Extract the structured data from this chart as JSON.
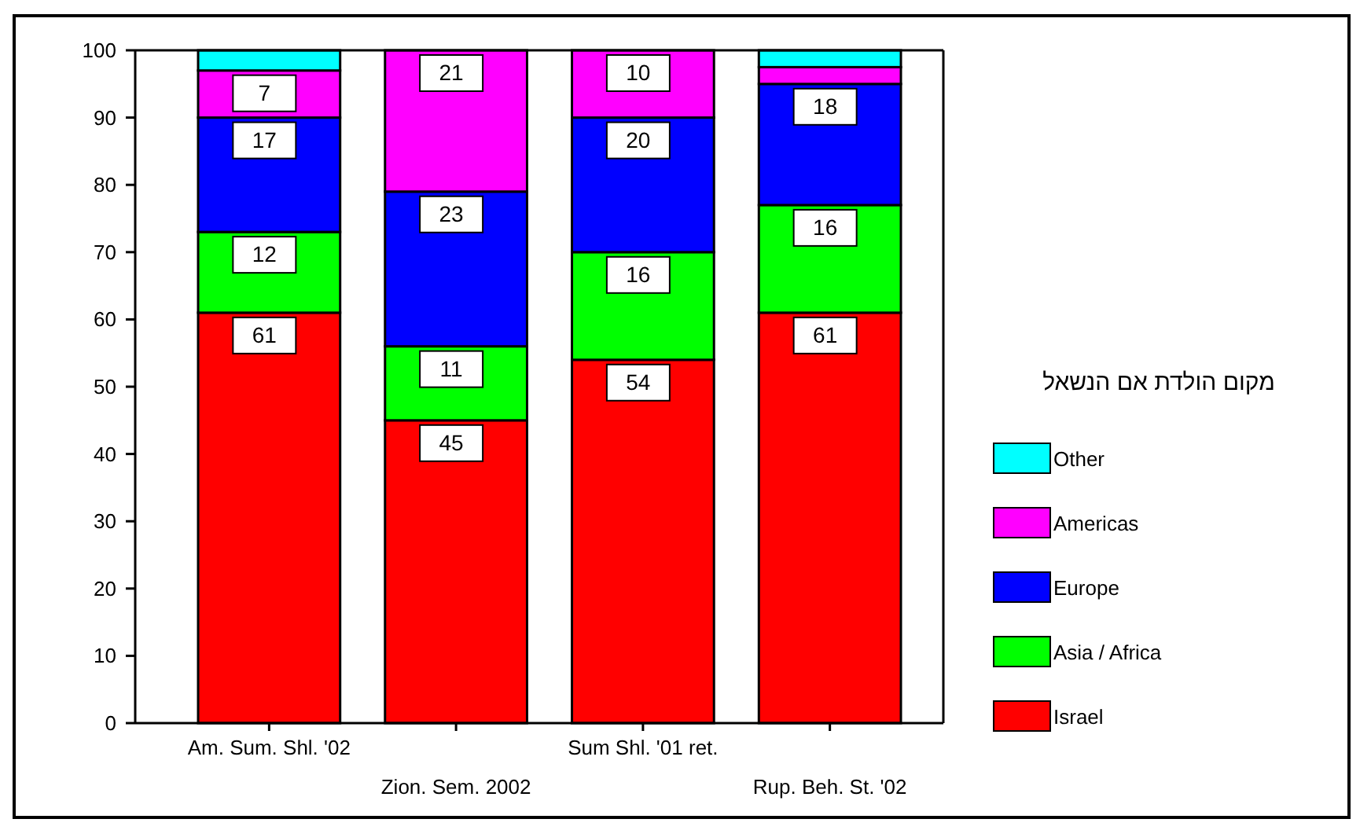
{
  "chart_data": {
    "type": "bar",
    "stacked": true,
    "categories": [
      "Am. Sum. Shl. '02",
      "Zion. Sem. 2002",
      "Sum Shl. '01 ret.",
      "Rup. Beh. St. '02"
    ],
    "series": [
      {
        "name": "Israel",
        "color": "#ff0000",
        "values": [
          61,
          45,
          54,
          61
        ],
        "value_labels": [
          "61",
          "45",
          "54",
          "61"
        ]
      },
      {
        "name": "Asia / Africa",
        "color": "#00ff00",
        "values": [
          12,
          11,
          16,
          16
        ],
        "value_labels": [
          "12",
          "11",
          "16",
          "16"
        ]
      },
      {
        "name": "Europe",
        "color": "#0000ff",
        "values": [
          17,
          23,
          20,
          18
        ],
        "value_labels": [
          "17",
          "23",
          "20",
          "18"
        ]
      },
      {
        "name": "Americas",
        "color": "#ff00ff",
        "values": [
          7,
          21,
          10,
          2.5
        ],
        "value_labels": [
          "7",
          "21",
          "10",
          null
        ]
      },
      {
        "name": "Other",
        "color": "#00ffff",
        "values": [
          3,
          null,
          null,
          2.5
        ]
      }
    ],
    "ylim": [
      0,
      100
    ],
    "yticks": [
      0,
      10,
      20,
      30,
      40,
      50,
      60,
      70,
      80,
      90,
      100
    ],
    "grid": false,
    "legend": "right",
    "legend_title": "מקום הולדת אם הנשאל"
  }
}
